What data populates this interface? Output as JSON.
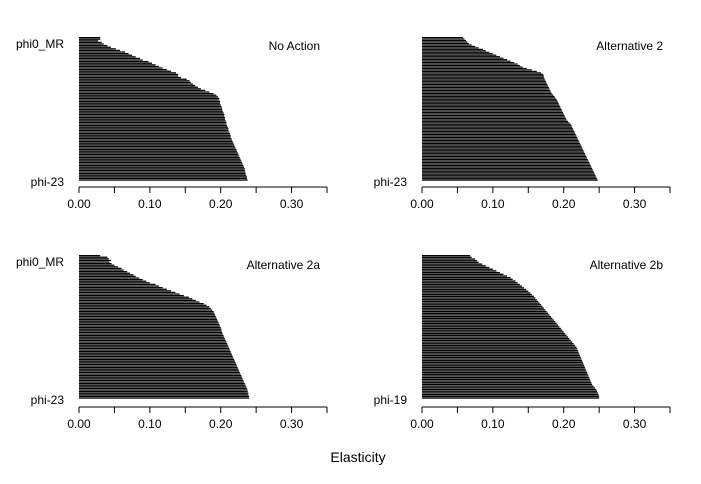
{
  "figure": {
    "xlabel": "Elasticity"
  },
  "chart_data": [
    {
      "type": "bar",
      "orientation": "horizontal",
      "title": "No Action",
      "first_label": "phi0_MR",
      "last_label": "phi-23",
      "xlim": [
        0,
        0.35
      ],
      "xticks": [
        "0.00",
        "0.10",
        "0.20",
        "0.30"
      ],
      "values": [
        0.03,
        0.03,
        0.027,
        0.032,
        0.035,
        0.04,
        0.045,
        0.052,
        0.058,
        0.065,
        0.07,
        0.075,
        0.08,
        0.086,
        0.09,
        0.098,
        0.103,
        0.108,
        0.113,
        0.118,
        0.124,
        0.13,
        0.137,
        0.14,
        0.14,
        0.144,
        0.152,
        0.156,
        0.158,
        0.161,
        0.164,
        0.168,
        0.172,
        0.178,
        0.184,
        0.19,
        0.194,
        0.196,
        0.198,
        0.198,
        0.199,
        0.199,
        0.2,
        0.201,
        0.202,
        0.202,
        0.203,
        0.204,
        0.205,
        0.205,
        0.206,
        0.206,
        0.207,
        0.208,
        0.208,
        0.209,
        0.21,
        0.211,
        0.211,
        0.212,
        0.213,
        0.214,
        0.214,
        0.215,
        0.216,
        0.217,
        0.218,
        0.219,
        0.22,
        0.221,
        0.222,
        0.223,
        0.224,
        0.225,
        0.226,
        0.227,
        0.228,
        0.229,
        0.23,
        0.231,
        0.232,
        0.233,
        0.234,
        0.234,
        0.235,
        0.235,
        0.236,
        0.237,
        0.237,
        0.238
      ]
    },
    {
      "type": "bar",
      "orientation": "horizontal",
      "title": "Alternative 2",
      "first_label": "",
      "last_label": "phi-23",
      "xlim": [
        0,
        0.35
      ],
      "xticks": [
        "0.00",
        "0.10",
        "0.20",
        "0.30"
      ],
      "values": [
        0.058,
        0.06,
        0.062,
        0.064,
        0.066,
        0.07,
        0.075,
        0.08,
        0.086,
        0.09,
        0.095,
        0.1,
        0.105,
        0.11,
        0.115,
        0.12,
        0.125,
        0.13,
        0.135,
        0.138,
        0.142,
        0.148,
        0.155,
        0.162,
        0.168,
        0.171,
        0.172,
        0.172,
        0.173,
        0.174,
        0.175,
        0.176,
        0.177,
        0.178,
        0.179,
        0.18,
        0.181,
        0.182,
        0.183,
        0.185,
        0.187,
        0.188,
        0.19,
        0.191,
        0.192,
        0.193,
        0.194,
        0.195,
        0.196,
        0.197,
        0.198,
        0.199,
        0.2,
        0.201,
        0.202,
        0.203,
        0.204,
        0.206,
        0.208,
        0.21,
        0.211,
        0.212,
        0.213,
        0.214,
        0.215,
        0.216,
        0.217,
        0.218,
        0.219,
        0.22,
        0.221,
        0.222,
        0.223,
        0.224,
        0.225,
        0.226,
        0.227,
        0.228,
        0.229,
        0.23,
        0.231,
        0.232,
        0.233,
        0.234,
        0.235,
        0.236,
        0.237,
        0.238,
        0.239,
        0.24,
        0.241,
        0.242,
        0.243,
        0.244,
        0.245,
        0.246,
        0.247,
        0.248
      ]
    },
    {
      "type": "bar",
      "orientation": "horizontal",
      "title": "Alternative 2a",
      "first_label": "phi0_MR",
      "last_label": "phi-23",
      "xlim": [
        0,
        0.35
      ],
      "xticks": [
        "0.00",
        "0.10",
        "0.20",
        "0.30"
      ],
      "values": [
        0.03,
        0.04,
        0.042,
        0.045,
        0.043,
        0.046,
        0.05,
        0.055,
        0.06,
        0.063,
        0.068,
        0.072,
        0.077,
        0.08,
        0.085,
        0.09,
        0.095,
        0.1,
        0.108,
        0.113,
        0.118,
        0.124,
        0.13,
        0.136,
        0.142,
        0.148,
        0.155,
        0.16,
        0.165,
        0.17,
        0.176,
        0.18,
        0.184,
        0.186,
        0.188,
        0.19,
        0.191,
        0.192,
        0.193,
        0.194,
        0.195,
        0.196,
        0.197,
        0.198,
        0.199,
        0.2,
        0.201,
        0.201,
        0.202,
        0.203,
        0.204,
        0.205,
        0.206,
        0.207,
        0.208,
        0.209,
        0.21,
        0.211,
        0.212,
        0.213,
        0.214,
        0.215,
        0.216,
        0.217,
        0.218,
        0.219,
        0.22,
        0.221,
        0.222,
        0.223,
        0.224,
        0.225,
        0.226,
        0.227,
        0.228,
        0.229,
        0.23,
        0.231,
        0.232,
        0.233,
        0.234,
        0.235,
        0.236,
        0.237,
        0.238,
        0.238,
        0.239,
        0.239,
        0.24,
        0.24
      ]
    },
    {
      "type": "bar",
      "orientation": "horizontal",
      "title": "Alternative 2b",
      "first_label": "",
      "last_label": "phi-19",
      "xlim": [
        0,
        0.35
      ],
      "xticks": [
        "0.00",
        "0.10",
        "0.20",
        "0.30"
      ],
      "values": [
        0.068,
        0.07,
        0.075,
        0.078,
        0.08,
        0.085,
        0.09,
        0.095,
        0.1,
        0.105,
        0.11,
        0.115,
        0.12,
        0.125,
        0.128,
        0.132,
        0.135,
        0.138,
        0.141,
        0.144,
        0.147,
        0.15,
        0.153,
        0.155,
        0.158,
        0.16,
        0.162,
        0.164,
        0.166,
        0.168,
        0.17,
        0.172,
        0.174,
        0.176,
        0.178,
        0.18,
        0.182,
        0.184,
        0.186,
        0.188,
        0.19,
        0.192,
        0.194,
        0.196,
        0.198,
        0.2,
        0.202,
        0.204,
        0.206,
        0.208,
        0.21,
        0.212,
        0.214,
        0.216,
        0.218,
        0.219,
        0.22,
        0.221,
        0.222,
        0.223,
        0.224,
        0.225,
        0.226,
        0.227,
        0.228,
        0.229,
        0.23,
        0.231,
        0.232,
        0.233,
        0.234,
        0.235,
        0.236,
        0.237,
        0.238,
        0.239,
        0.24,
        0.242,
        0.244,
        0.246,
        0.247,
        0.248,
        0.249,
        0.25,
        0.25
      ]
    }
  ]
}
